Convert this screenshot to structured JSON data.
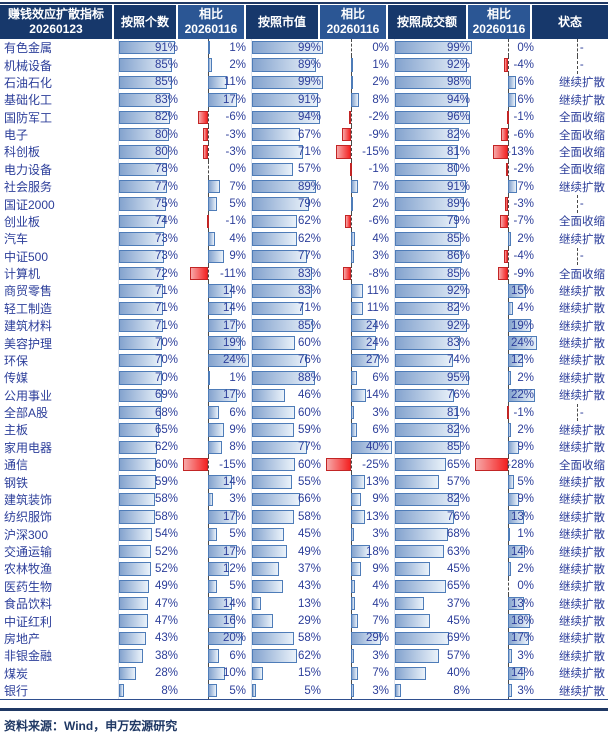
{
  "colors": {
    "header_dark": "#17386B",
    "header_light": "#2B5694",
    "body_text_blue": "#2C3E9A",
    "bar_border": "#4E7CB8",
    "bar_gradient_from": "#84A3CE",
    "bar_gradient_to": "#EAF2FA",
    "negative_bar_border": "#C22525",
    "negative_bar_from": "#F7A8A8",
    "negative_bar_to": "#F42222",
    "rule_navy": "#1F3864"
  },
  "footer": {
    "source": "资料来源：Wind，申万宏源研究"
  },
  "chart_data": {
    "type": "table",
    "title": "赚钱效应扩散指标 20260123",
    "header": {
      "label_line1": "赚钱效应扩散指标",
      "label_line2": "20260123",
      "col_count": "按照个数",
      "vs1_line1": "相比",
      "vs1_line2": "20260116",
      "col_mcap": "按照市值",
      "vs2_line1": "相比",
      "vs2_line2": "20260116",
      "col_amount": "按照成交额",
      "vs3_line1": "相比",
      "vs3_line2": "20260116",
      "col_status": "状态"
    },
    "columns": [
      "赚钱效应扩散指标 20260123",
      "按照个数",
      "相比20260116",
      "按照市值",
      "相比20260116",
      "按照成交额",
      "相比20260116",
      "状态"
    ],
    "pct_scale": [
      0,
      100
    ],
    "delta_ranges": {
      "delta1": {
        "min": -15,
        "max": 24
      },
      "delta2": {
        "min": -25,
        "max": 40
      },
      "delta3": {
        "min": -28,
        "max": 24
      }
    },
    "status_values": [
      "继续扩散",
      "全面收缩",
      "-"
    ],
    "rows": [
      {
        "label": "有色金属",
        "count": 91,
        "delta1": 1,
        "mcap": 99,
        "delta2": 0,
        "amount": 99,
        "delta3": 0,
        "status": "-"
      },
      {
        "label": "机械设备",
        "count": 85,
        "delta1": 2,
        "mcap": 89,
        "delta2": 1,
        "amount": 92,
        "delta3": -4,
        "status": "-"
      },
      {
        "label": "石油石化",
        "count": 85,
        "delta1": 11,
        "mcap": 99,
        "delta2": 2,
        "amount": 98,
        "delta3": 6,
        "status": "继续扩散"
      },
      {
        "label": "基础化工",
        "count": 83,
        "delta1": 17,
        "mcap": 91,
        "delta2": 8,
        "amount": 94,
        "delta3": 6,
        "status": "继续扩散"
      },
      {
        "label": "国防军工",
        "count": 82,
        "delta1": -6,
        "mcap": 94,
        "delta2": -2,
        "amount": 96,
        "delta3": -1,
        "status": "全面收缩"
      },
      {
        "label": "电子",
        "count": 80,
        "delta1": -3,
        "mcap": 67,
        "delta2": -9,
        "amount": 82,
        "delta3": -6,
        "status": "全面收缩"
      },
      {
        "label": "科创板",
        "count": 80,
        "delta1": -3,
        "mcap": 71,
        "delta2": -15,
        "amount": 81,
        "delta3": -13,
        "status": "全面收缩"
      },
      {
        "label": "电力设备",
        "count": 78,
        "delta1": 0,
        "mcap": 57,
        "delta2": -1,
        "amount": 80,
        "delta3": -2,
        "status": "全面收缩"
      },
      {
        "label": "社会服务",
        "count": 77,
        "delta1": 7,
        "mcap": 89,
        "delta2": 7,
        "amount": 91,
        "delta3": 7,
        "status": "继续扩散"
      },
      {
        "label": "国证2000",
        "count": 75,
        "delta1": 5,
        "mcap": 79,
        "delta2": 2,
        "amount": 89,
        "delta3": -3,
        "status": "-"
      },
      {
        "label": "创业板",
        "count": 74,
        "delta1": -1,
        "mcap": 62,
        "delta2": -6,
        "amount": 79,
        "delta3": -7,
        "status": "全面收缩"
      },
      {
        "label": "汽车",
        "count": 73,
        "delta1": 4,
        "mcap": 62,
        "delta2": 4,
        "amount": 85,
        "delta3": 2,
        "status": "继续扩散"
      },
      {
        "label": "中证500",
        "count": 73,
        "delta1": 9,
        "mcap": 77,
        "delta2": 3,
        "amount": 86,
        "delta3": -4,
        "status": "-"
      },
      {
        "label": "计算机",
        "count": 72,
        "delta1": -11,
        "mcap": 83,
        "delta2": -8,
        "amount": 85,
        "delta3": -9,
        "status": "全面收缩"
      },
      {
        "label": "商贸零售",
        "count": 71,
        "delta1": 14,
        "mcap": 83,
        "delta2": 11,
        "amount": 92,
        "delta3": 15,
        "status": "继续扩散"
      },
      {
        "label": "轻工制造",
        "count": 71,
        "delta1": 14,
        "mcap": 71,
        "delta2": 11,
        "amount": 82,
        "delta3": 4,
        "status": "继续扩散"
      },
      {
        "label": "建筑材料",
        "count": 71,
        "delta1": 17,
        "mcap": 85,
        "delta2": 24,
        "amount": 92,
        "delta3": 19,
        "status": "继续扩散"
      },
      {
        "label": "美容护理",
        "count": 70,
        "delta1": 19,
        "mcap": 60,
        "delta2": 24,
        "amount": 83,
        "delta3": 24,
        "status": "继续扩散"
      },
      {
        "label": "环保",
        "count": 70,
        "delta1": 24,
        "mcap": 76,
        "delta2": 27,
        "amount": 74,
        "delta3": 12,
        "status": "继续扩散"
      },
      {
        "label": "传媒",
        "count": 70,
        "delta1": 1,
        "mcap": 88,
        "delta2": 6,
        "amount": 95,
        "delta3": 2,
        "status": "继续扩散"
      },
      {
        "label": "公用事业",
        "count": 69,
        "delta1": 17,
        "mcap": 46,
        "delta2": 14,
        "amount": 76,
        "delta3": 22,
        "status": "继续扩散"
      },
      {
        "label": "全部A股",
        "count": 68,
        "delta1": 6,
        "mcap": 60,
        "delta2": 3,
        "amount": 81,
        "delta3": -1,
        "status": "-"
      },
      {
        "label": "主板",
        "count": 65,
        "delta1": 9,
        "mcap": 59,
        "delta2": 6,
        "amount": 82,
        "delta3": 2,
        "status": "继续扩散"
      },
      {
        "label": "家用电器",
        "count": 62,
        "delta1": 8,
        "mcap": 77,
        "delta2": 40,
        "amount": 85,
        "delta3": 9,
        "status": "继续扩散"
      },
      {
        "label": "通信",
        "count": 60,
        "delta1": -15,
        "mcap": 60,
        "delta2": -25,
        "amount": 65,
        "delta3": -28,
        "status": "全面收缩"
      },
      {
        "label": "钢铁",
        "count": 59,
        "delta1": 14,
        "mcap": 55,
        "delta2": 13,
        "amount": 57,
        "delta3": 5,
        "status": "继续扩散"
      },
      {
        "label": "建筑装饰",
        "count": 58,
        "delta1": 3,
        "mcap": 66,
        "delta2": 9,
        "amount": 82,
        "delta3": 9,
        "status": "继续扩散"
      },
      {
        "label": "纺织服饰",
        "count": 58,
        "delta1": 17,
        "mcap": 58,
        "delta2": 13,
        "amount": 76,
        "delta3": 13,
        "status": "继续扩散"
      },
      {
        "label": "沪深300",
        "count": 54,
        "delta1": 5,
        "mcap": 45,
        "delta2": 3,
        "amount": 68,
        "delta3": 1,
        "status": "继续扩散"
      },
      {
        "label": "交通运输",
        "count": 52,
        "delta1": 17,
        "mcap": 49,
        "delta2": 18,
        "amount": 63,
        "delta3": 14,
        "status": "继续扩散"
      },
      {
        "label": "农林牧渔",
        "count": 52,
        "delta1": 12,
        "mcap": 37,
        "delta2": 9,
        "amount": 45,
        "delta3": 2,
        "status": "继续扩散"
      },
      {
        "label": "医药生物",
        "count": 49,
        "delta1": 5,
        "mcap": 43,
        "delta2": 4,
        "amount": 65,
        "delta3": 0,
        "status": "继续扩散"
      },
      {
        "label": "食品饮料",
        "count": 47,
        "delta1": 14,
        "mcap": 13,
        "delta2": 4,
        "amount": 37,
        "delta3": 13,
        "status": "继续扩散"
      },
      {
        "label": "中证红利",
        "count": 47,
        "delta1": 16,
        "mcap": 29,
        "delta2": 7,
        "amount": 45,
        "delta3": 18,
        "status": "继续扩散"
      },
      {
        "label": "房地产",
        "count": 43,
        "delta1": 20,
        "mcap": 58,
        "delta2": 29,
        "amount": 69,
        "delta3": 17,
        "status": "继续扩散"
      },
      {
        "label": "非银金融",
        "count": 38,
        "delta1": 6,
        "mcap": 62,
        "delta2": 3,
        "amount": 57,
        "delta3": 3,
        "status": "继续扩散"
      },
      {
        "label": "煤炭",
        "count": 28,
        "delta1": 10,
        "mcap": 15,
        "delta2": 7,
        "amount": 40,
        "delta3": 14,
        "status": "继续扩散"
      },
      {
        "label": "银行",
        "count": 8,
        "delta1": 5,
        "mcap": 5,
        "delta2": 3,
        "amount": 8,
        "delta3": 3,
        "status": "继续扩散"
      }
    ]
  }
}
